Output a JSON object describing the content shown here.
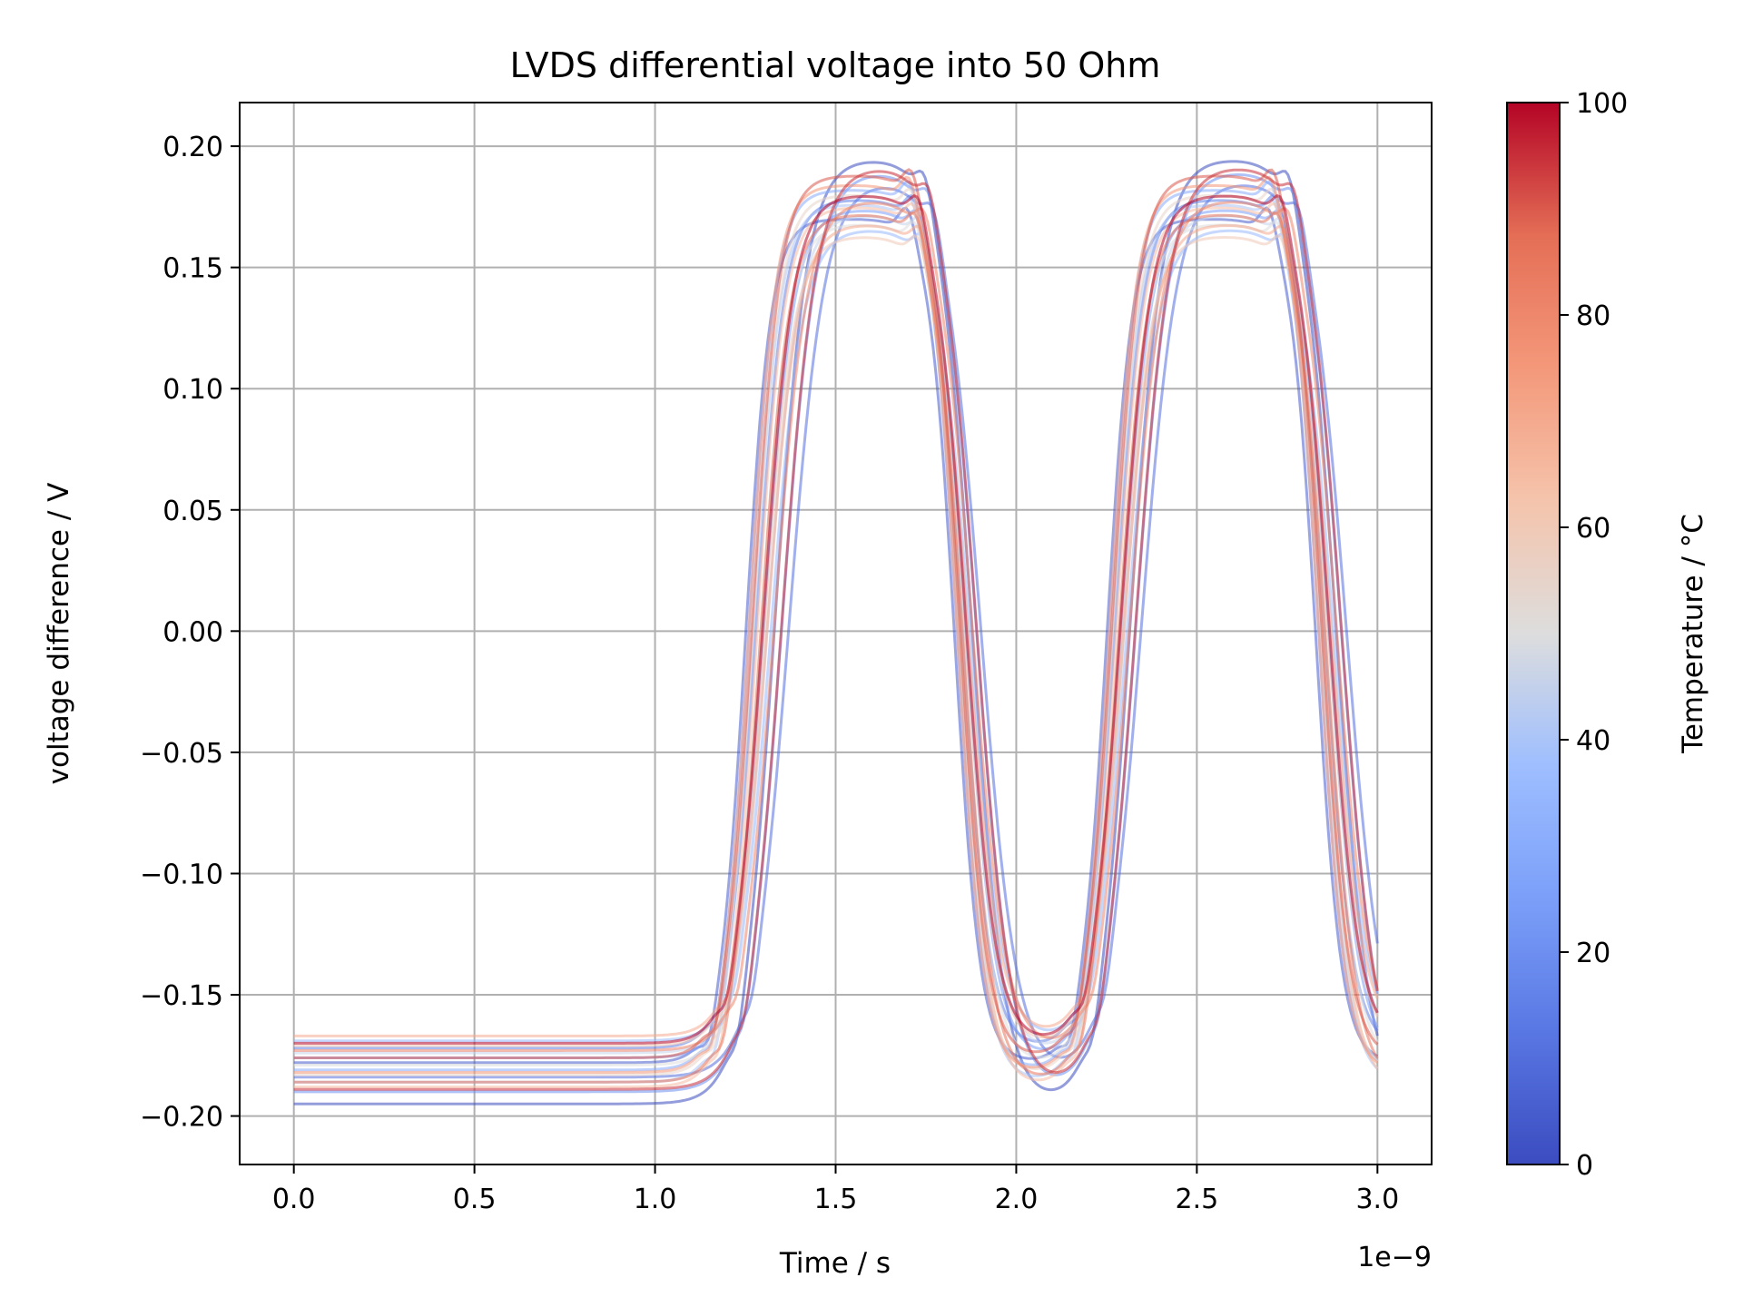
{
  "chart_data": {
    "type": "line",
    "title": "LVDS differential voltage into 50 Ohm",
    "xlabel": "Time / s",
    "ylabel": "voltage difference / V",
    "x_offset_text": "1e−9",
    "xlim": [
      -0.15,
      3.15
    ],
    "ylim": [
      -0.22,
      0.218
    ],
    "x_tick_labels": [
      "0.0",
      "0.5",
      "1.0",
      "1.5",
      "2.0",
      "2.5",
      "3.0"
    ],
    "x_tick_values": [
      0.0,
      0.5,
      1.0,
      1.5,
      2.0,
      2.5,
      3.0
    ],
    "y_tick_labels": [
      "0.20",
      "0.15",
      "0.10",
      "0.05",
      "0.00",
      "−0.05",
      "−0.10",
      "−0.15",
      "−0.20"
    ],
    "y_tick_values": [
      0.2,
      0.15,
      0.1,
      0.05,
      0.0,
      -0.05,
      -0.1,
      -0.15,
      -0.2
    ],
    "grid": true,
    "colorbar": {
      "label": "Temperature / °C",
      "colormap": "coolwarm",
      "range": [
        0,
        100
      ],
      "tick_labels": [
        "0",
        "20",
        "40",
        "60",
        "80",
        "100"
      ],
      "tick_values": [
        0,
        20,
        40,
        60,
        80,
        100
      ],
      "color_low": "#3b4cc0",
      "color_mid": "#dddddd",
      "color_high": "#b40426"
    },
    "series_shape": {
      "x_unit_scale": "1e-9",
      "t_start": 0.0,
      "t_end": 3.0,
      "rise_1": 1.15,
      "fall_1": 1.7,
      "rise_2": 2.15,
      "fall_2": 2.7,
      "low_range": [
        -0.196,
        -0.165
      ],
      "high_range": [
        0.16,
        0.195
      ]
    },
    "series": [
      {
        "temperature": 0,
        "low": -0.195,
        "high": 0.195,
        "delay": 0.08
      },
      {
        "temperature": 5,
        "low": -0.178,
        "high": 0.17,
        "delay": 0.0
      },
      {
        "temperature": 10,
        "low": -0.184,
        "high": 0.186,
        "delay": 0.12
      },
      {
        "temperature": 15,
        "low": -0.172,
        "high": 0.178,
        "delay": 0.03
      },
      {
        "temperature": 20,
        "low": -0.19,
        "high": 0.19,
        "delay": 0.1
      },
      {
        "temperature": 25,
        "low": -0.176,
        "high": 0.174,
        "delay": 0.05
      },
      {
        "temperature": 30,
        "low": -0.181,
        "high": 0.182,
        "delay": 0.01
      },
      {
        "temperature": 35,
        "low": -0.169,
        "high": 0.166,
        "delay": 0.07
      },
      {
        "temperature": 40,
        "low": -0.186,
        "high": 0.176,
        "delay": 0.02
      },
      {
        "temperature": 45,
        "low": -0.174,
        "high": 0.172,
        "delay": 0.06
      },
      {
        "temperature": 50,
        "low": -0.179,
        "high": 0.168,
        "delay": 0.04
      },
      {
        "temperature": 55,
        "low": -0.183,
        "high": 0.18,
        "delay": 0.02
      },
      {
        "temperature": 60,
        "low": -0.171,
        "high": 0.163,
        "delay": 0.05
      },
      {
        "temperature": 65,
        "low": -0.188,
        "high": 0.175,
        "delay": 0.03
      },
      {
        "temperature": 70,
        "low": -0.167,
        "high": 0.168,
        "delay": 0.06
      },
      {
        "temperature": 75,
        "low": -0.182,
        "high": 0.184,
        "delay": 0.01
      },
      {
        "temperature": 80,
        "low": -0.173,
        "high": 0.178,
        "delay": 0.08
      },
      {
        "temperature": 85,
        "low": -0.186,
        "high": 0.172,
        "delay": 0.04
      },
      {
        "temperature": 90,
        "low": -0.176,
        "high": 0.188,
        "delay": 0.02
      },
      {
        "temperature": 95,
        "low": -0.189,
        "high": 0.192,
        "delay": 0.1
      },
      {
        "temperature": 100,
        "low": -0.17,
        "high": 0.18,
        "delay": 0.05
      }
    ]
  }
}
